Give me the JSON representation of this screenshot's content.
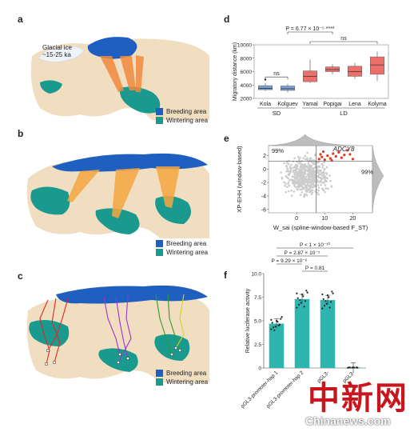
{
  "panels": {
    "a": "a",
    "b": "b",
    "c": "c",
    "d": "d",
    "e": "e",
    "f": "f"
  },
  "map_a": {
    "glacial_label": "Glacial ice",
    "glacial_age": "~15-25 ka",
    "legend": [
      {
        "label": "Breeding area",
        "color": "#1f5fbf"
      },
      {
        "label": "Wintering area",
        "color": "#1a9a8e"
      }
    ]
  },
  "map_b": {
    "legend": [
      {
        "label": "Breeding area",
        "color": "#1f5fbf"
      },
      {
        "label": "Wintering area",
        "color": "#1a9a8e"
      }
    ]
  },
  "map_c": {
    "legend": [
      {
        "label": "Breeding area",
        "color": "#1f5fbf"
      },
      {
        "label": "Wintering area",
        "color": "#1a9a8e"
      }
    ],
    "track_colors": [
      "#e0281f",
      "#d4a21a",
      "#9b36c9",
      "#2e9a2e",
      "#d6d61e"
    ]
  },
  "chart_data": [
    {
      "id": "d",
      "type": "box",
      "title": "",
      "ylabel": "Migratory distance (km)",
      "ylim": [
        2000,
        10000
      ],
      "yticks": [
        "2000",
        "4000",
        "6000",
        "8000",
        "10000"
      ],
      "categories": [
        "Kola",
        "Kolguev",
        "Yamal",
        "Popigai",
        "Lena",
        "Kolyma"
      ],
      "groups": [
        {
          "label": "SD",
          "members": [
            "Kola",
            "Kolguev"
          ]
        },
        {
          "label": "LD",
          "members": [
            "Yamal",
            "Popigai",
            "Lena",
            "Kolyma"
          ]
        }
      ],
      "boxes": [
        {
          "min": 3100,
          "q1": 3300,
          "median": 3500,
          "q3": 3900,
          "max": 4300,
          "outliers": [
            4800
          ],
          "color": "#7aa1d6"
        },
        {
          "min": 2900,
          "q1": 3200,
          "median": 3450,
          "q3": 3850,
          "max": 4200,
          "outliers": [],
          "color": "#7aa1d6"
        },
        {
          "min": 4300,
          "q1": 4500,
          "median": 5300,
          "q3": 6100,
          "max": 7800,
          "outliers": [],
          "color": "#ec6f6a"
        },
        {
          "min": 5600,
          "q1": 6000,
          "median": 6300,
          "q3": 6700,
          "max": 7100,
          "outliers": [],
          "color": "#ec6f6a"
        },
        {
          "min": 4900,
          "q1": 5300,
          "median": 6000,
          "q3": 6800,
          "max": 7300,
          "outliers": [],
          "color": "#ec6f6a"
        },
        {
          "min": 4600,
          "q1": 5600,
          "median": 7000,
          "q3": 8200,
          "max": 9000,
          "outliers": [],
          "color": "#ec6f6a"
        }
      ],
      "annotations": [
        {
          "text": "ns",
          "from": "Kola",
          "to": "Kolguev"
        },
        {
          "text": "P = 6.77 × 10⁻⁵ ****",
          "from": "Kolguev",
          "to": "Popigai"
        },
        {
          "text": "ns",
          "from": "Yamal",
          "to": "Kolyma"
        }
      ]
    },
    {
      "id": "e",
      "type": "scatter",
      "xlabel": "W_sai (spline-window-based F_ST)",
      "ylabel": "XP-EHH (window-based)",
      "xlim": [
        -10,
        27
      ],
      "ylim": [
        -6.5,
        3.5
      ],
      "xticks": [
        0,
        10,
        20
      ],
      "yticks": [
        -6,
        -4,
        -2,
        0,
        2
      ],
      "threshold_x": 7,
      "threshold_y": 1.2,
      "quantile_labels": [
        "99%",
        "99%"
      ],
      "gene_label": "ADCY8",
      "highlight_color": "#e0391f",
      "background_color": "#cccccc",
      "highlight_points": [
        {
          "x": 8,
          "y": 1.5
        },
        {
          "x": 9,
          "y": 1.8
        },
        {
          "x": 10,
          "y": 1.4
        },
        {
          "x": 11,
          "y": 2.0
        },
        {
          "x": 12,
          "y": 1.6
        },
        {
          "x": 13,
          "y": 2.3
        },
        {
          "x": 14,
          "y": 1.9
        },
        {
          "x": 15,
          "y": 2.5
        },
        {
          "x": 16,
          "y": 1.7
        },
        {
          "x": 17,
          "y": 2.1
        },
        {
          "x": 18,
          "y": 2.8
        },
        {
          "x": 19,
          "y": 2.2
        },
        {
          "x": 20,
          "y": 1.5
        },
        {
          "x": 9.5,
          "y": 2.6
        },
        {
          "x": 12.5,
          "y": 1.3
        },
        {
          "x": 8.5,
          "y": 2.2
        }
      ]
    },
    {
      "id": "f",
      "type": "bar",
      "ylabel": "Relative luciferase activity",
      "ylim": [
        0,
        10
      ],
      "yticks": [
        "0",
        "2.5",
        "5.0",
        "7.5",
        "10.0"
      ],
      "categories": [
        "pGL3-promoter-hap 1",
        "pGL3-promoter-hap 2",
        "pGL3-",
        "pGL3-"
      ],
      "values": [
        4.7,
        7.3,
        7.2,
        0.05
      ],
      "point_spread": [
        [
          4.1,
          4.4,
          4.6,
          4.8,
          5.0,
          5.2,
          4.3,
          4.9,
          5.4,
          4.0,
          4.5,
          5.1
        ],
        [
          6.4,
          6.9,
          7.1,
          7.4,
          7.8,
          8.2,
          6.7,
          7.6,
          8.0,
          7.2,
          6.5,
          7.9
        ],
        [
          6.3,
          6.8,
          7.0,
          7.3,
          7.7,
          8.1,
          6.6,
          7.5,
          7.9,
          7.1,
          6.4,
          7.8
        ],
        [
          0.02,
          0.04,
          0.05,
          0.06,
          0.07,
          0.03,
          0.05,
          0.04
        ]
      ],
      "bar_color": "#2fb5b0",
      "comparisons": [
        {
          "text": "P < 1 × 10⁻¹⁰",
          "from": 0,
          "to": 3
        },
        {
          "text": "P = 2.87 × 10⁻⁵",
          "from": 0,
          "to": 2
        },
        {
          "text": "P = 9.29 × 10⁻⁶",
          "from": 0,
          "to": 1
        },
        {
          "text": "P = 0.81",
          "from": 1,
          "to": 2
        }
      ]
    }
  ],
  "watermark": {
    "cn": "中新网",
    "en": "Chinanews.com"
  }
}
